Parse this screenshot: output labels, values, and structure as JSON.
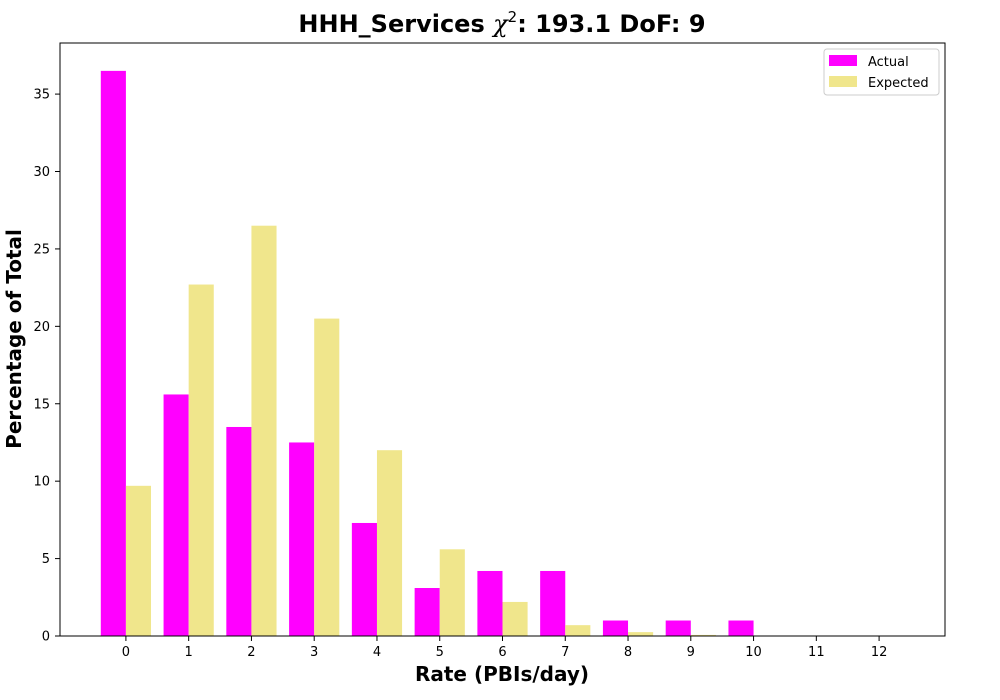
{
  "chart_data": {
    "type": "bar",
    "title": "HHH_Services",
    "title_stat_symbol": "χ",
    "title_stat_exponent": "2",
    "title_stat_rest": ": 193.1 DoF: 9",
    "xlabel": "Rate (PBIs/day)",
    "ylabel": "Percentage of Total",
    "categories": [
      "0",
      "1",
      "2",
      "3",
      "4",
      "5",
      "6",
      "7",
      "8",
      "9",
      "10",
      "11",
      "12"
    ],
    "x": [
      0,
      1,
      2,
      3,
      4,
      5,
      6,
      7,
      8,
      9,
      10,
      11,
      12
    ],
    "series": [
      {
        "name": "Actual",
        "color": "#ff00ff",
        "values": [
          36.5,
          15.6,
          13.5,
          12.5,
          7.3,
          3.1,
          4.2,
          4.2,
          1.0,
          1.0,
          1.0,
          0,
          0
        ]
      },
      {
        "name": "Expected",
        "color": "#f0e68c",
        "values": [
          9.7,
          22.7,
          26.5,
          20.5,
          12.0,
          5.6,
          2.2,
          0.7,
          0.25,
          0.07,
          0.02,
          0,
          0
        ]
      }
    ],
    "xlim": [
      -1.05,
      13.05
    ],
    "ylim": [
      0,
      38.3
    ],
    "yticks": [
      0,
      5,
      10,
      15,
      20,
      25,
      30,
      35
    ],
    "grid": false,
    "legend_position": "top-right"
  }
}
